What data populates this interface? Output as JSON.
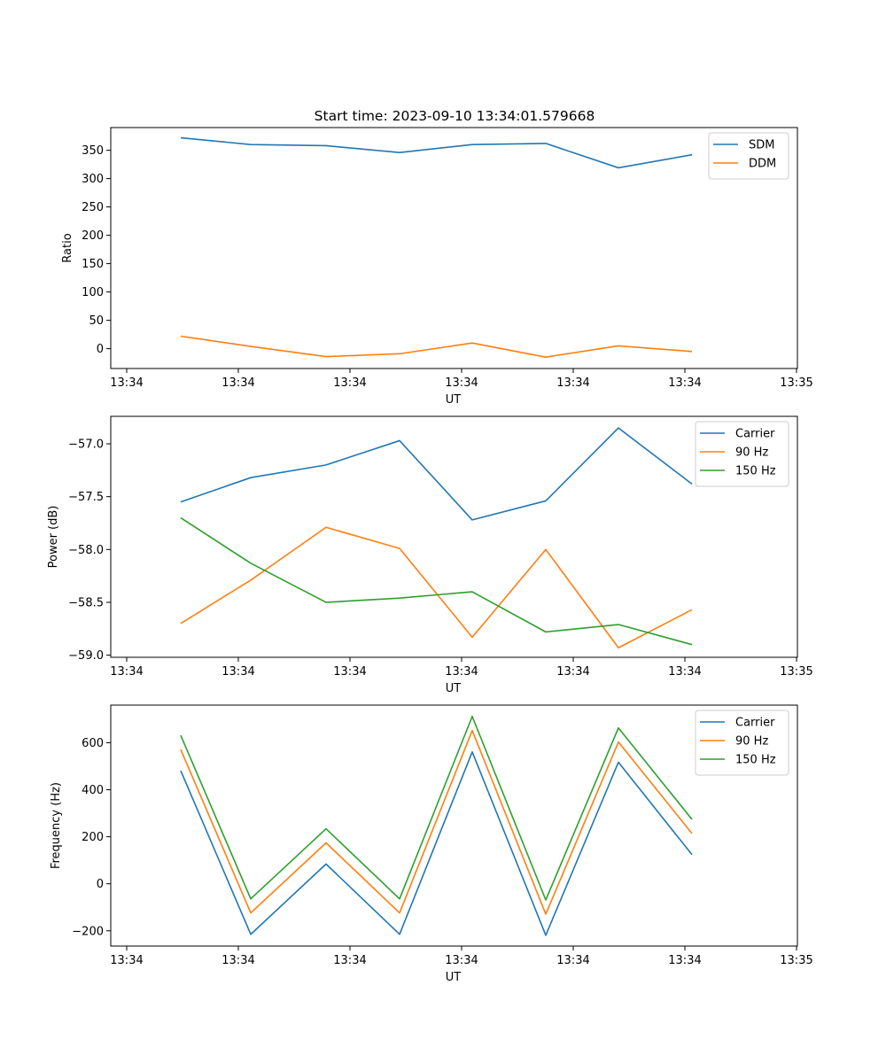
{
  "figure_title": "Start time: 2023-09-10 13:34:01.579668",
  "chart_data": [
    {
      "type": "line",
      "title": "Start time: 2023-09-10 13:34:01.579668",
      "xlabel": "UT",
      "ylabel": "Ratio",
      "x_tick_labels": [
        "13:34",
        "13:34",
        "13:34",
        "13:34",
        "13:34",
        "13:34",
        "13:35"
      ],
      "y_ticks": [
        0,
        50,
        100,
        150,
        200,
        250,
        300,
        350
      ],
      "ylim": [
        -35,
        390
      ],
      "legend_position": "top-right",
      "series": [
        {
          "name": "SDM",
          "color": "#1f77b4",
          "values": [
            372,
            360,
            358,
            346,
            360,
            362,
            319,
            342
          ]
        },
        {
          "name": "DDM",
          "color": "#ff7f0e",
          "values": [
            22,
            4,
            -14,
            -9,
            10,
            -15,
            5,
            -5
          ]
        }
      ]
    },
    {
      "type": "line",
      "title": "",
      "xlabel": "UT",
      "ylabel": "Power (dB)",
      "x_tick_labels": [
        "13:34",
        "13:34",
        "13:34",
        "13:34",
        "13:34",
        "13:34",
        "13:35"
      ],
      "y_ticks": [
        -59.0,
        -58.5,
        -58.0,
        -57.5,
        -57.0
      ],
      "y_tick_labels": [
        "−59.0",
        "−58.5",
        "−58.0",
        "−57.5",
        "−57.0"
      ],
      "ylim": [
        -59.02,
        -56.74
      ],
      "legend_position": "top-right",
      "series": [
        {
          "name": "Carrier",
          "color": "#1f77b4",
          "values": [
            -57.55,
            -57.32,
            -57.2,
            -56.97,
            -57.72,
            -57.54,
            -56.85,
            -57.38
          ]
        },
        {
          "name": "90 Hz",
          "color": "#ff7f0e",
          "values": [
            -58.7,
            -58.29,
            -57.79,
            -57.99,
            -58.83,
            -58.0,
            -58.93,
            -58.57
          ]
        },
        {
          "name": "150 Hz",
          "color": "#2ca02c",
          "values": [
            -57.7,
            -58.13,
            -58.5,
            -58.46,
            -58.4,
            -58.78,
            -58.71,
            -58.9
          ]
        }
      ]
    },
    {
      "type": "line",
      "title": "",
      "xlabel": "UT",
      "ylabel": "Frequency (Hz)",
      "x_tick_labels": [
        "13:34",
        "13:34",
        "13:34",
        "13:34",
        "13:34",
        "13:34",
        "13:35"
      ],
      "y_ticks": [
        -200,
        0,
        200,
        400,
        600
      ],
      "y_tick_labels": [
        "−200",
        "0",
        "200",
        "400",
        "600"
      ],
      "ylim": [
        -265,
        760
      ],
      "legend_position": "top-right",
      "series": [
        {
          "name": "Carrier",
          "color": "#1f77b4",
          "values": [
            481,
            -215,
            84,
            -215,
            561,
            -219,
            517,
            124
          ]
        },
        {
          "name": "90 Hz",
          "color": "#ff7f0e",
          "values": [
            571,
            -124,
            174,
            -124,
            652,
            -129,
            603,
            214
          ]
        },
        {
          "name": "150 Hz",
          "color": "#2ca02c",
          "values": [
            631,
            -64,
            234,
            -64,
            712,
            -69,
            663,
            274
          ]
        }
      ]
    }
  ]
}
